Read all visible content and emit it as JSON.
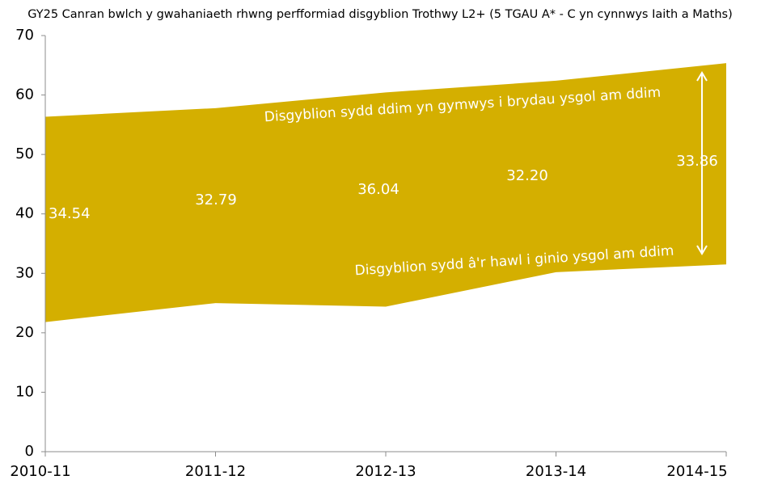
{
  "chart_data": {
    "type": "area",
    "stacked": true,
    "title": "GY25 Canran bwlch y gwahaniaeth rhwng perfformiad disgyblion Trothwy L2+ (5 TGAU A* - C yn cynnwys Iaith a Maths)",
    "categories": [
      "2010-11",
      "2011-12",
      "2012-13",
      "2013-14",
      "2014-15"
    ],
    "series": [
      {
        "color": "#ffffff",
        "values": [
          21.8,
          25.0,
          24.4,
          30.2,
          31.5
        ]
      },
      {
        "color": "#d4af00",
        "values": [
          34.54,
          32.79,
          36.04,
          32.2,
          33.86
        ],
        "value_labels": [
          "34.54",
          "32.79",
          "36.04",
          "32.20",
          "33.86"
        ]
      }
    ],
    "annotations": [
      "Disgyblion sydd ddim yn gymwys i brydau ysgol am ddim",
      "Disgyblion sydd â'r hawl i ginio ysgol am ddim"
    ],
    "ylim": [
      0,
      70
    ],
    "yticks": [
      0,
      10,
      20,
      30,
      40,
      50,
      60,
      70
    ],
    "grid": false
  }
}
